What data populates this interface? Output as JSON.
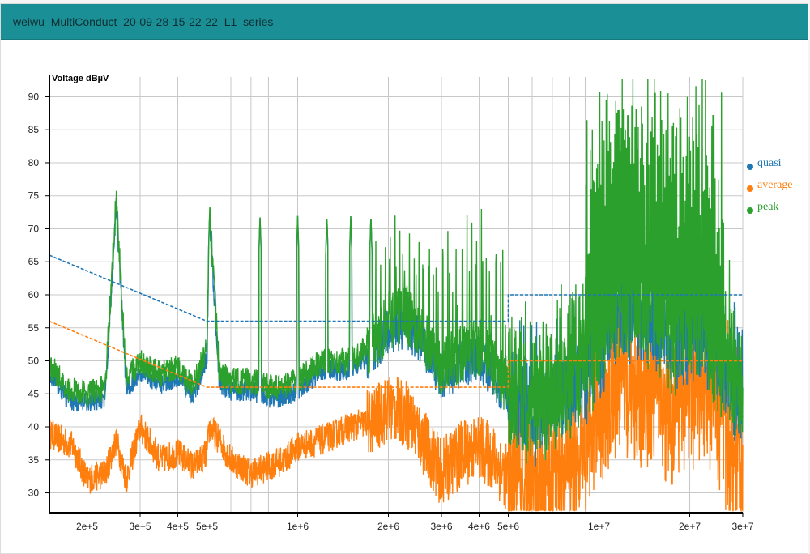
{
  "panel": {
    "title": "weiwu_MultiConduct_20-09-28-15-22-22_L1_series",
    "header_color": "#1b8f96"
  },
  "chart_data": {
    "type": "line",
    "title": "",
    "xlabel": "",
    "ylabel": "Voltage dBµV",
    "x_scale": "log",
    "xlim": [
      150000,
      30000000
    ],
    "ylim": [
      27,
      93
    ],
    "x_ticks": [
      {
        "value": 200000,
        "label": "2e+5"
      },
      {
        "value": 300000,
        "label": "3e+5"
      },
      {
        "value": 400000,
        "label": "4e+5"
      },
      {
        "value": 500000,
        "label": "5e+5"
      },
      {
        "value": 1000000,
        "label": "1e+6"
      },
      {
        "value": 2000000,
        "label": "2e+6"
      },
      {
        "value": 3000000,
        "label": "3e+6"
      },
      {
        "value": 4000000,
        "label": "4e+6"
      },
      {
        "value": 5000000,
        "label": "5e+6"
      },
      {
        "value": 10000000,
        "label": "1e+7"
      },
      {
        "value": 20000000,
        "label": "2e+7"
      },
      {
        "value": 30000000,
        "label": "3e+7"
      }
    ],
    "y_ticks": [
      30,
      35,
      40,
      45,
      50,
      55,
      60,
      65,
      70,
      75,
      80,
      85,
      90
    ],
    "grid": true,
    "legend_position": "right",
    "series": [
      {
        "name": "quasi",
        "color": "#1f77b4"
      },
      {
        "name": "average",
        "color": "#ff7f0e"
      },
      {
        "name": "peak",
        "color": "#2ca02c"
      }
    ],
    "limit_lines": [
      {
        "series": "quasi",
        "style": "dashed",
        "points": [
          [
            150000,
            66
          ],
          [
            500000,
            56
          ],
          [
            5000000,
            56
          ],
          [
            5000000,
            60
          ],
          [
            30000000,
            60
          ]
        ]
      },
      {
        "series": "average",
        "style": "dashed",
        "points": [
          [
            150000,
            56
          ],
          [
            500000,
            46
          ],
          [
            5000000,
            46
          ],
          [
            5000000,
            50
          ],
          [
            30000000,
            50
          ]
        ]
      }
    ],
    "harmonic_peaks_hz": [
      250000,
      510000,
      750000,
      1000000,
      1250000,
      1500000,
      1750000
    ],
    "measurement_envelope": {
      "peak": [
        [
          150000,
          49
        ],
        [
          160000,
          48
        ],
        [
          170000,
          46
        ],
        [
          180000,
          45.5
        ],
        [
          200000,
          45
        ],
        [
          230000,
          46
        ],
        [
          250000,
          75
        ],
        [
          270000,
          47
        ],
        [
          300000,
          50
        ],
        [
          350000,
          48
        ],
        [
          400000,
          49
        ],
        [
          450000,
          46
        ],
        [
          500000,
          52
        ],
        [
          510000,
          73
        ],
        [
          550000,
          48
        ],
        [
          600000,
          47
        ],
        [
          700000,
          47
        ],
        [
          800000,
          46
        ],
        [
          900000,
          46
        ],
        [
          1000000,
          47
        ],
        [
          1200000,
          50
        ],
        [
          1500000,
          50
        ],
        [
          1800000,
          53
        ],
        [
          2000000,
          56
        ],
        [
          2300000,
          57
        ],
        [
          2600000,
          54
        ],
        [
          3000000,
          49
        ],
        [
          3500000,
          51
        ],
        [
          4000000,
          52
        ],
        [
          4500000,
          49
        ],
        [
          5000000,
          46
        ],
        [
          6000000,
          44
        ],
        [
          7000000,
          45
        ],
        [
          8000000,
          48
        ],
        [
          9000000,
          50
        ],
        [
          10000000,
          54
        ],
        [
          11000000,
          57
        ],
        [
          12000000,
          60
        ],
        [
          13000000,
          59
        ],
        [
          15000000,
          57
        ],
        [
          18000000,
          55
        ],
        [
          20000000,
          56
        ],
        [
          22000000,
          55
        ],
        [
          25000000,
          52
        ],
        [
          28000000,
          48
        ],
        [
          30000000,
          47
        ]
      ],
      "average": [
        [
          150000,
          39
        ],
        [
          180000,
          37
        ],
        [
          200000,
          32
        ],
        [
          230000,
          33
        ],
        [
          250000,
          38
        ],
        [
          270000,
          32
        ],
        [
          300000,
          40
        ],
        [
          350000,
          35
        ],
        [
          400000,
          36
        ],
        [
          450000,
          34
        ],
        [
          500000,
          36
        ],
        [
          510000,
          40
        ],
        [
          550000,
          38
        ],
        [
          600000,
          35
        ],
        [
          700000,
          33
        ],
        [
          800000,
          34
        ],
        [
          900000,
          35
        ],
        [
          1000000,
          37
        ],
        [
          1200000,
          38
        ],
        [
          1500000,
          40
        ],
        [
          1800000,
          41
        ],
        [
          2000000,
          43
        ],
        [
          2300000,
          42
        ],
        [
          2600000,
          38
        ],
        [
          3000000,
          33
        ],
        [
          3500000,
          36
        ],
        [
          4000000,
          37
        ],
        [
          4500000,
          35
        ],
        [
          5000000,
          32
        ],
        [
          6000000,
          31
        ],
        [
          7000000,
          32
        ],
        [
          8000000,
          34
        ],
        [
          9000000,
          37
        ],
        [
          10000000,
          41
        ],
        [
          11000000,
          44
        ],
        [
          12000000,
          47
        ],
        [
          13000000,
          46
        ],
        [
          15000000,
          44
        ],
        [
          18000000,
          42
        ],
        [
          20000000,
          45
        ],
        [
          22000000,
          46
        ],
        [
          25000000,
          42
        ],
        [
          28000000,
          36
        ],
        [
          30000000,
          33
        ]
      ]
    }
  }
}
